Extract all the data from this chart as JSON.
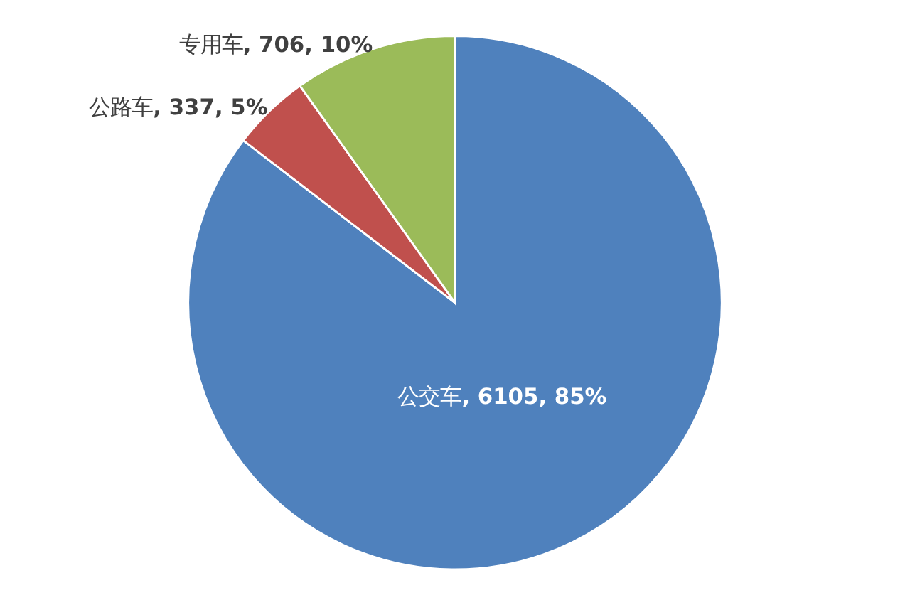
{
  "chart_data": {
    "type": "pie",
    "categories": [
      "公交车",
      "公路车",
      "专用车"
    ],
    "values": [
      6105,
      337,
      706
    ],
    "colors": [
      "#4f81bd",
      "#c0504d",
      "#9bbb59"
    ],
    "value_labels": [
      ", 6105, 85%",
      ", 337, 5%",
      ", 706, 10%"
    ],
    "legend": false
  }
}
